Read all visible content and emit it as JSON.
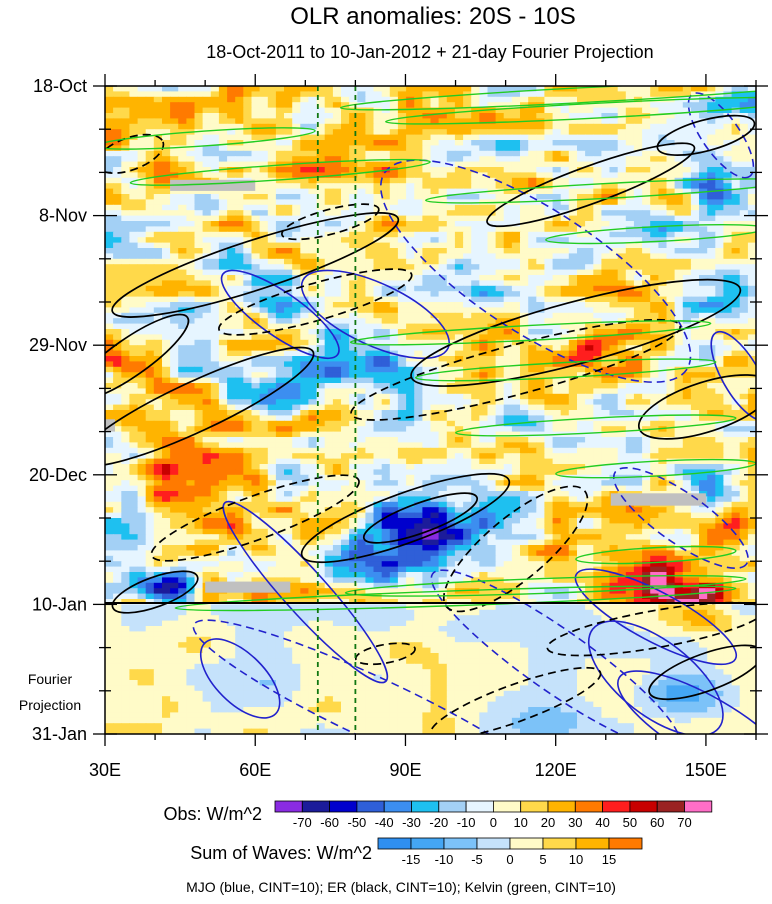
{
  "chart_data": {
    "type": "heatmap",
    "title": "OLR anomalies: 20S - 10S",
    "subtitle": "18-Oct-2011 to 10-Jan-2012 + 21-day Fourier Projection",
    "x_ticks": [
      {
        "value": 30,
        "label": "30E"
      },
      {
        "value": 60,
        "label": "60E"
      },
      {
        "value": 90,
        "label": "90E"
      },
      {
        "value": 120,
        "label": "120E"
      },
      {
        "value": 150,
        "label": "150E"
      }
    ],
    "xlim": [
      30,
      160
    ],
    "y_ticks": [
      {
        "value": 0,
        "label": "18-Oct"
      },
      {
        "value": 21,
        "label": "8-Nov"
      },
      {
        "value": 42,
        "label": "29-Nov"
      },
      {
        "value": 63,
        "label": "20-Dec"
      },
      {
        "value": 84,
        "label": "10-Jan"
      },
      {
        "value": 105,
        "label": "31-Jan"
      }
    ],
    "ylim": [
      0,
      105
    ],
    "projection_label": "Fourier Projection",
    "projection_start_day": 84,
    "reference_lines_lon": [
      72.5,
      80
    ],
    "obs_colorbar": {
      "label": "Obs: W/m^2",
      "levels": [
        "-70",
        "-60",
        "-50",
        "-40",
        "-30",
        "-20",
        "-10",
        "0",
        "10",
        "20",
        "30",
        "40",
        "50",
        "60",
        "70"
      ],
      "colors": [
        "#8a2be2",
        "#1c1c9a",
        "#0000cd",
        "#2f5fd8",
        "#3c8ef0",
        "#1ec0f0",
        "#a3d0f5",
        "#e6f5ff",
        "#fffbc8",
        "#ffd94a",
        "#ffb400",
        "#ff7a00",
        "#ff1e1e",
        "#c80000",
        "#9a2222",
        "#ff6ec7"
      ]
    },
    "waves_colorbar": {
      "label": "Sum of Waves: W/m^2",
      "levels": [
        "-15",
        "-10",
        "-5",
        "0",
        "5",
        "10",
        "15"
      ],
      "colors": [
        "#2f8ff0",
        "#44a6f4",
        "#7cc2f8",
        "#c5e2fb",
        "#fffbc8",
        "#ffd94a",
        "#ffb400",
        "#ff7a00"
      ]
    },
    "contour_legend": "MJO (blue, CINT=10); ER (black, CINT=10); Kelvin (green, CINT=10)",
    "contour_colors": {
      "mjo": "#2222cc",
      "er": "#000000",
      "kelvin": "#22cc22"
    },
    "missing_color": "#c0c0c0"
  }
}
